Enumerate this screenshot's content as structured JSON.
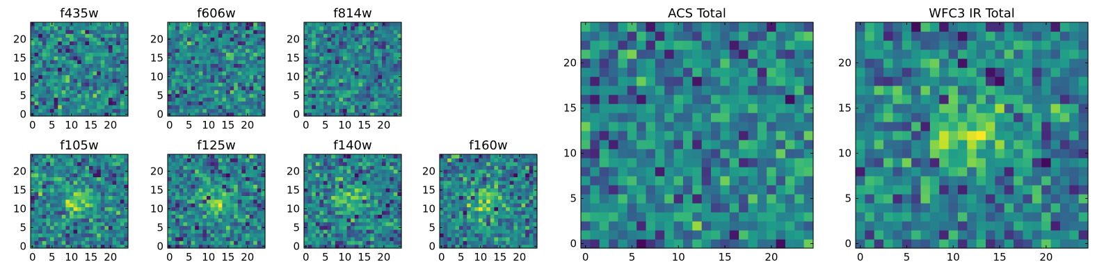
{
  "chart_data": [
    {
      "type": "heatmap",
      "title": "f435w",
      "grid_size": 25,
      "xticks": [
        "0",
        "5",
        "10",
        "15",
        "20"
      ],
      "yticks": [
        "0",
        "5",
        "10",
        "15",
        "20"
      ],
      "colormap": "viridis",
      "pattern": "noise",
      "seed": 11
    },
    {
      "type": "heatmap",
      "title": "f606w",
      "grid_size": 25,
      "xticks": [
        "0",
        "5",
        "10",
        "15",
        "20"
      ],
      "yticks": [
        "0",
        "5",
        "10",
        "15",
        "20"
      ],
      "colormap": "viridis",
      "pattern": "noise",
      "seed": 23
    },
    {
      "type": "heatmap",
      "title": "f814w",
      "grid_size": 25,
      "xticks": [
        "0",
        "5",
        "10",
        "15",
        "20"
      ],
      "yticks": [
        "0",
        "5",
        "10",
        "15",
        "20"
      ],
      "colormap": "viridis",
      "pattern": "noise",
      "seed": 37
    },
    {
      "type": "heatmap",
      "title": "f105w",
      "grid_size": 25,
      "xticks": [
        "0",
        "5",
        "10",
        "15",
        "20"
      ],
      "yticks": [
        "0",
        "5",
        "10",
        "15",
        "20"
      ],
      "colormap": "viridis",
      "pattern": "source",
      "seed": 41
    },
    {
      "type": "heatmap",
      "title": "f125w",
      "grid_size": 25,
      "xticks": [
        "0",
        "5",
        "10",
        "15",
        "20"
      ],
      "yticks": [
        "0",
        "5",
        "10",
        "15",
        "20"
      ],
      "colormap": "viridis",
      "pattern": "source",
      "seed": 53
    },
    {
      "type": "heatmap",
      "title": "f140w",
      "grid_size": 25,
      "xticks": [
        "0",
        "5",
        "10",
        "15",
        "20"
      ],
      "yticks": [
        "0",
        "5",
        "10",
        "15",
        "20"
      ],
      "colormap": "viridis",
      "pattern": "source",
      "seed": 67
    },
    {
      "type": "heatmap",
      "title": "f160w",
      "grid_size": 25,
      "xticks": [
        "0",
        "5",
        "10",
        "15",
        "20"
      ],
      "yticks": [
        "0",
        "5",
        "10",
        "15",
        "20"
      ],
      "colormap": "viridis",
      "pattern": "source",
      "seed": 79
    },
    {
      "type": "heatmap",
      "title": "ACS Total",
      "grid_size": 25,
      "xticks": [
        "0",
        "5",
        "10",
        "15",
        "20"
      ],
      "yticks": [
        "0",
        "5",
        "10",
        "15",
        "20"
      ],
      "colormap": "viridis",
      "pattern": "noise",
      "seed": 97
    },
    {
      "type": "heatmap",
      "title": "WFC3 IR Total",
      "grid_size": 25,
      "xticks": [
        "0",
        "5",
        "10",
        "15",
        "20"
      ],
      "yticks": [
        "0",
        "5",
        "10",
        "15",
        "20"
      ],
      "colormap": "viridis",
      "pattern": "source",
      "seed": 131
    }
  ]
}
